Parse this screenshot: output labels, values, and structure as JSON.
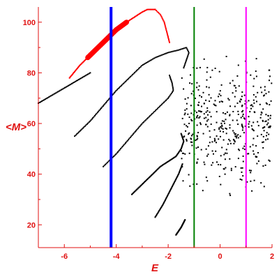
{
  "chart_data": {
    "type": "scatter",
    "xlabel": "E",
    "ylabel": "<M>",
    "xlim": [
      -7,
      2
    ],
    "ylim": [
      11,
      106
    ],
    "x_ticks": [
      -6,
      -4,
      -2,
      0,
      2
    ],
    "x_tick_labels": [
      "-6",
      "-4",
      "-2",
      "0",
      "2"
    ],
    "y_ticks": [
      20,
      40,
      60,
      80,
      100
    ],
    "y_tick_labels": [
      "20",
      "40",
      "60",
      "80",
      "100"
    ],
    "grid": false,
    "vertical_lines": [
      {
        "x": -4.2,
        "color": "#0000ff"
      },
      {
        "x": -1.0,
        "color": "#008000"
      },
      {
        "x": 1.0,
        "color": "#ff00ff"
      }
    ],
    "series": [
      {
        "color": "#ff0000",
        "curve": [
          [
            -5.8,
            78
          ],
          [
            -5.4,
            83
          ],
          [
            -5.0,
            87
          ],
          [
            -4.6,
            91
          ],
          [
            -4.3,
            94
          ],
          [
            -4.0,
            97
          ],
          [
            -3.6,
            100
          ],
          [
            -3.3,
            102
          ],
          [
            -3.0,
            104
          ],
          [
            -2.8,
            105
          ],
          [
            -2.5,
            105
          ]
        ],
        "band_range": [
          -5.1,
          -3.6
        ],
        "tail": [
          [
            -2.5,
            105
          ],
          [
            -2.3,
            103
          ],
          [
            -2.15,
            100
          ],
          [
            -2.05,
            96
          ],
          [
            -1.95,
            92
          ]
        ]
      },
      {
        "color": "#000000",
        "curve": [
          [
            -7,
            68
          ],
          [
            -6.5,
            71
          ],
          [
            -6.0,
            74
          ],
          [
            -5.5,
            77
          ],
          [
            -5.0,
            80
          ]
        ]
      },
      {
        "color": "#000000",
        "curve": [
          [
            -5.6,
            55
          ],
          [
            -5.0,
            61
          ],
          [
            -4.5,
            67
          ],
          [
            -4.0,
            73
          ],
          [
            -3.5,
            78
          ],
          [
            -3.0,
            83
          ],
          [
            -2.5,
            86
          ],
          [
            -2.0,
            88
          ],
          [
            -1.6,
            89
          ],
          [
            -1.3,
            90
          ],
          [
            -1.2,
            88
          ],
          [
            -1.3,
            85
          ],
          [
            -1.4,
            82
          ]
        ]
      },
      {
        "color": "#000000",
        "curve": [
          [
            -4.5,
            43
          ],
          [
            -4.0,
            48
          ],
          [
            -3.5,
            54
          ],
          [
            -3.0,
            60
          ],
          [
            -2.5,
            65
          ],
          [
            -2.0,
            70
          ],
          [
            -1.8,
            73
          ],
          [
            -1.85,
            76
          ],
          [
            -1.95,
            79
          ]
        ]
      },
      {
        "color": "#000000",
        "curve": [
          [
            -3.4,
            32
          ],
          [
            -3.0,
            36
          ],
          [
            -2.6,
            40
          ],
          [
            -2.3,
            43
          ],
          [
            -2.0,
            45
          ],
          [
            -1.7,
            47
          ],
          [
            -1.5,
            50
          ],
          [
            -1.4,
            53
          ],
          [
            -1.5,
            56
          ]
        ]
      },
      {
        "color": "#000000",
        "curve": [
          [
            -2.5,
            23
          ],
          [
            -2.2,
            28
          ],
          [
            -2.0,
            32
          ],
          [
            -1.8,
            36
          ],
          [
            -1.6,
            40
          ],
          [
            -1.45,
            44
          ]
        ]
      },
      {
        "color": "#000000",
        "curve": [
          [
            -1.7,
            16
          ],
          [
            -1.5,
            19
          ],
          [
            -1.35,
            22
          ]
        ]
      },
      {
        "color": "#000000",
        "cloud": {
          "x_range": [
            -1.5,
            2.0
          ],
          "y_range": [
            27,
            93
          ],
          "count": 420
        }
      }
    ]
  }
}
